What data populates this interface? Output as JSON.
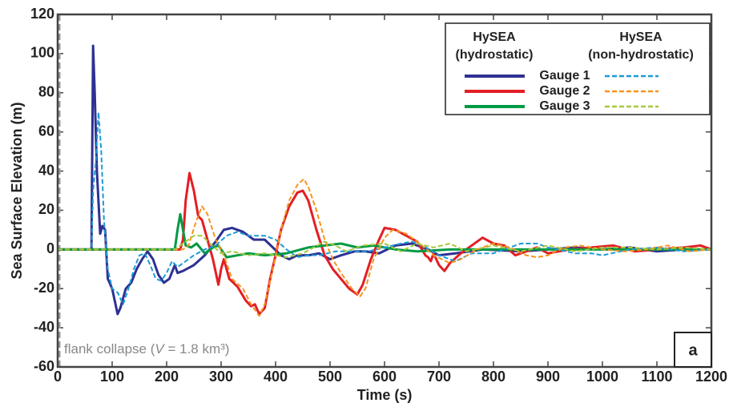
{
  "chart_data": {
    "type": "line",
    "x_label": "Time (s)",
    "y_label": "Sea Surface Elevation (m)",
    "xlim": [
      0,
      1200
    ],
    "ylim": [
      -60,
      120
    ],
    "xticks": [
      0,
      100,
      200,
      300,
      400,
      500,
      600,
      700,
      800,
      900,
      1000,
      1100,
      1200
    ],
    "yticks": [
      -60,
      -40,
      -20,
      0,
      20,
      40,
      60,
      80,
      100,
      120
    ],
    "legend_headers": [
      [
        "HySEA",
        "(hydrostatic)"
      ],
      [
        "HySEA",
        "(non-hydrostatic)"
      ]
    ],
    "annotation": [
      "flank collapse (",
      "V",
      " = 1.8 km³)"
    ],
    "panel_label": "a",
    "series": [
      {
        "name": "Gauge 1",
        "color": "#2e3192",
        "dashed": false,
        "x": [
          0,
          60,
          62,
          65,
          68,
          72,
          78,
          82,
          87,
          92,
          100,
          110,
          115,
          125,
          135,
          145,
          155,
          165,
          175,
          185,
          195,
          205,
          215,
          220,
          230,
          250,
          270,
          290,
          305,
          320,
          340,
          360,
          380,
          395,
          410,
          425,
          440,
          460,
          480,
          500,
          520,
          545,
          565,
          590,
          620,
          650,
          680,
          700,
          730,
          780,
          850,
          900,
          950,
          1000,
          1050,
          1100,
          1150,
          1200
        ],
        "values": [
          0,
          0,
          0,
          104,
          80,
          40,
          8,
          12,
          10,
          -15,
          -20,
          -33,
          -30,
          -20,
          -17,
          -10,
          -5,
          -1,
          -5,
          -13,
          -17,
          -15,
          -8,
          -12,
          -11,
          -8,
          -3,
          4,
          10,
          11,
          9,
          5,
          5,
          1,
          -3,
          -5,
          -3,
          -3,
          -2,
          -5,
          -3,
          -1,
          -1,
          -2,
          2,
          3,
          0,
          -3,
          -2,
          0,
          -1,
          0,
          1,
          0,
          1,
          -1,
          0,
          0
        ]
      },
      {
        "name": "Gauge 2",
        "color": "#e31e24",
        "dashed": false,
        "x": [
          0,
          225,
          230,
          235,
          242,
          250,
          258,
          265,
          275,
          285,
          295,
          300,
          305,
          315,
          330,
          345,
          355,
          362,
          370,
          380,
          390,
          400,
          410,
          425,
          440,
          450,
          460,
          475,
          490,
          505,
          520,
          535,
          550,
          560,
          575,
          590,
          600,
          620,
          640,
          660,
          675,
          680,
          685,
          690,
          700,
          710,
          720,
          740,
          760,
          780,
          800,
          820,
          840,
          860,
          880,
          900,
          940,
          980,
          1020,
          1060,
          1100,
          1150,
          1180,
          1200
        ],
        "values": [
          0,
          0,
          5,
          25,
          39,
          30,
          17,
          15,
          5,
          -5,
          -18,
          -10,
          -5,
          -15,
          -19,
          -26,
          -29,
          -28,
          -33,
          -30,
          -15,
          -3,
          10,
          22,
          29,
          30,
          25,
          10,
          -3,
          -10,
          -15,
          -20,
          -23,
          -18,
          -5,
          5,
          11,
          10,
          7,
          4,
          -3,
          -4,
          -6,
          -2,
          -8,
          -11,
          -7,
          -2,
          2,
          6,
          3,
          2,
          -3,
          -1,
          1,
          -2,
          0,
          1,
          2,
          -1,
          0,
          1,
          2,
          0
        ]
      },
      {
        "name": "Gauge 3",
        "color": "#009a44",
        "dashed": false,
        "x": [
          0,
          215,
          220,
          225,
          230,
          235,
          245,
          255,
          270,
          285,
          295,
          310,
          330,
          350,
          380,
          420,
          460,
          490,
          520,
          550,
          580,
          620,
          660,
          720,
          800,
          900,
          1000,
          1100,
          1200
        ],
        "values": [
          0,
          0,
          10,
          18,
          10,
          2,
          1,
          3,
          -2,
          1,
          2,
          -4,
          -3,
          -2,
          -3,
          -2,
          1,
          2,
          3,
          1,
          2,
          0,
          -1,
          0,
          0,
          0,
          0,
          0,
          0
        ]
      },
      {
        "name": "Gauge 1",
        "color": "#1d9ad6",
        "dashed": true,
        "x": [
          0,
          62,
          65,
          70,
          75,
          80,
          85,
          92,
          100,
          110,
          120,
          130,
          140,
          150,
          160,
          170,
          180,
          190,
          200,
          210,
          220,
          235,
          250,
          270,
          290,
          310,
          330,
          350,
          380,
          400,
          420,
          440,
          460,
          480,
          510,
          540,
          570,
          600,
          630,
          650,
          670,
          700,
          730,
          760,
          800,
          850,
          880,
          900,
          950,
          980,
          1000,
          1050,
          1100,
          1150,
          1200
        ],
        "values": [
          0,
          0,
          30,
          45,
          70,
          50,
          15,
          -10,
          -20,
          -22,
          -28,
          -20,
          -10,
          -3,
          -2,
          -8,
          -15,
          -16,
          -12,
          -6,
          -9,
          -6,
          -3,
          0,
          2,
          7,
          9,
          7,
          7,
          5,
          0,
          -4,
          -3,
          -3,
          -1,
          -1,
          -1,
          1,
          3,
          4,
          2,
          -3,
          -6,
          -2,
          -2,
          3,
          3,
          1,
          -2,
          -2,
          -3,
          0,
          1,
          -1,
          0
        ]
      },
      {
        "name": "Gauge 2",
        "color": "#f7941d",
        "dashed": true,
        "x": [
          0,
          230,
          240,
          255,
          265,
          275,
          290,
          305,
          320,
          340,
          355,
          370,
          380,
          395,
          410,
          425,
          440,
          452,
          460,
          475,
          490,
          505,
          520,
          540,
          555,
          565,
          580,
          600,
          615,
          640,
          660,
          690,
          720,
          740,
          770,
          800,
          830,
          860,
          880,
          900,
          930,
          960,
          1000,
          1040,
          1080,
          1120,
          1160,
          1200
        ],
        "values": [
          0,
          0,
          2,
          15,
          22,
          18,
          5,
          -3,
          -15,
          -20,
          -28,
          -34,
          -28,
          -10,
          10,
          25,
          33,
          36,
          32,
          20,
          5,
          -5,
          -12,
          -20,
          -24,
          -20,
          -5,
          6,
          10,
          8,
          4,
          -3,
          -7,
          -5,
          0,
          3,
          1,
          -3,
          -4,
          -3,
          1,
          2,
          0,
          -1,
          0,
          2,
          -1,
          0
        ]
      },
      {
        "name": "Gauge 3",
        "color": "#a6c83c",
        "dashed": true,
        "x": [
          0,
          215,
          230,
          250,
          265,
          280,
          300,
          320,
          350,
          380,
          420,
          450,
          470,
          490,
          510,
          530,
          560,
          600,
          630,
          660,
          690,
          720,
          750,
          800,
          850,
          900,
          950,
          1000,
          1050,
          1100,
          1150,
          1200
        ],
        "values": [
          0,
          0,
          3,
          7,
          7,
          3,
          -2,
          -1,
          -3,
          -2,
          -4,
          -2,
          1,
          4,
          2,
          -1,
          2,
          3,
          -1,
          3,
          1,
          3,
          -1,
          2,
          -1,
          2,
          -1,
          1,
          1,
          0,
          1,
          0
        ]
      }
    ]
  }
}
